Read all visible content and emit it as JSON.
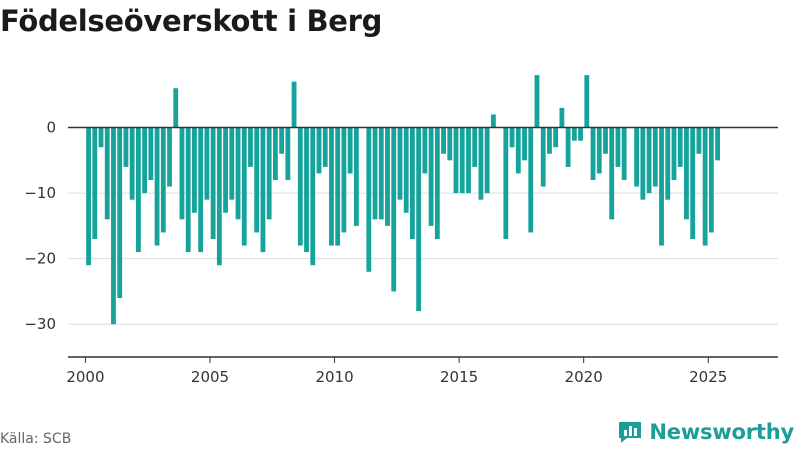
{
  "page": {
    "source": "Källa: SCB",
    "brand": "Newsworthy"
  },
  "colors": {
    "bar": "#16a39b",
    "grid": "#dddddd",
    "axis": "#333333",
    "brand": "#1b9e97"
  },
  "chart_data": {
    "type": "bar",
    "title": "Födelseöverskott i Berg",
    "xlabel": "",
    "ylabel": "",
    "ylim": [
      -35,
      10
    ],
    "xlim": [
      1999.3,
      2027.8
    ],
    "grid": true,
    "legend": "none",
    "yticks": [
      0,
      -10,
      -20,
      -30
    ],
    "xticks": [
      2000,
      2005,
      2010,
      2015,
      2020,
      2025
    ],
    "series": [
      {
        "frequency": "quarterly",
        "start": "2000-Q1",
        "values": [
          -21,
          -17,
          -3,
          -14,
          -30,
          -26,
          -6,
          -11,
          -19,
          -10,
          -8,
          -18,
          -16,
          -9,
          6,
          -14,
          -19,
          -13,
          -19,
          -11,
          -17,
          -21,
          -13,
          -11,
          -14,
          -18,
          -6,
          -16,
          -19,
          -14,
          -8,
          -4,
          -8,
          7,
          -18,
          -19,
          -21,
          -7,
          -6,
          -18,
          -18,
          -16,
          -7,
          -15,
          0,
          -22,
          -14,
          -14,
          -15,
          -25,
          -11,
          -13,
          -17,
          -28,
          -7,
          -15,
          -17,
          -4,
          -5,
          -10,
          -10,
          -10,
          -6,
          -11,
          -10,
          2,
          0,
          -17,
          -3,
          -7,
          -5,
          -16,
          8,
          -9,
          -4,
          -3,
          3,
          -6,
          -2,
          -2,
          8,
          -8,
          -7,
          -4,
          -14,
          -6,
          -8,
          0,
          -9,
          -11,
          -10,
          -9,
          -18,
          -11,
          -8,
          -6,
          -14,
          -17,
          -4,
          -18,
          -16,
          -5
        ]
      }
    ]
  }
}
